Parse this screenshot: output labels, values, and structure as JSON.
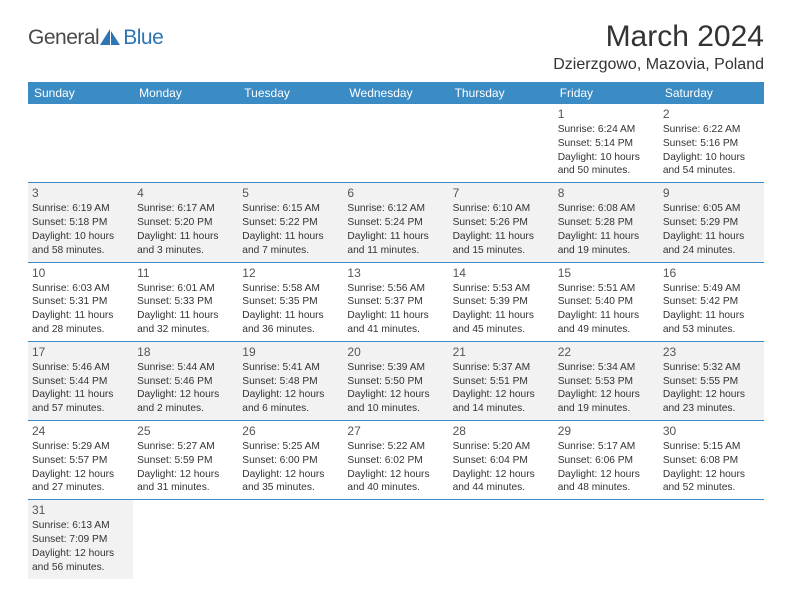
{
  "logo": {
    "text_general": "General",
    "text_blue": "Blue",
    "shape_color": "#2e75b6"
  },
  "title": "March 2024",
  "location": "Dzierzgowo, Mazovia, Poland",
  "colors": {
    "header_bg": "#3b8bc4",
    "header_text": "#ffffff",
    "shaded_bg": "#f2f2f2",
    "border": "#3b8bc4",
    "text": "#333333"
  },
  "day_names": [
    "Sunday",
    "Monday",
    "Tuesday",
    "Wednesday",
    "Thursday",
    "Friday",
    "Saturday"
  ],
  "weeks": [
    [
      null,
      null,
      null,
      null,
      null,
      {
        "n": "1",
        "sr": "Sunrise: 6:24 AM",
        "ss": "Sunset: 5:14 PM",
        "dl1": "Daylight: 10 hours",
        "dl2": "and 50 minutes."
      },
      {
        "n": "2",
        "sr": "Sunrise: 6:22 AM",
        "ss": "Sunset: 5:16 PM",
        "dl1": "Daylight: 10 hours",
        "dl2": "and 54 minutes."
      }
    ],
    [
      {
        "n": "3",
        "sr": "Sunrise: 6:19 AM",
        "ss": "Sunset: 5:18 PM",
        "dl1": "Daylight: 10 hours",
        "dl2": "and 58 minutes."
      },
      {
        "n": "4",
        "sr": "Sunrise: 6:17 AM",
        "ss": "Sunset: 5:20 PM",
        "dl1": "Daylight: 11 hours",
        "dl2": "and 3 minutes."
      },
      {
        "n": "5",
        "sr": "Sunrise: 6:15 AM",
        "ss": "Sunset: 5:22 PM",
        "dl1": "Daylight: 11 hours",
        "dl2": "and 7 minutes."
      },
      {
        "n": "6",
        "sr": "Sunrise: 6:12 AM",
        "ss": "Sunset: 5:24 PM",
        "dl1": "Daylight: 11 hours",
        "dl2": "and 11 minutes."
      },
      {
        "n": "7",
        "sr": "Sunrise: 6:10 AM",
        "ss": "Sunset: 5:26 PM",
        "dl1": "Daylight: 11 hours",
        "dl2": "and 15 minutes."
      },
      {
        "n": "8",
        "sr": "Sunrise: 6:08 AM",
        "ss": "Sunset: 5:28 PM",
        "dl1": "Daylight: 11 hours",
        "dl2": "and 19 minutes."
      },
      {
        "n": "9",
        "sr": "Sunrise: 6:05 AM",
        "ss": "Sunset: 5:29 PM",
        "dl1": "Daylight: 11 hours",
        "dl2": "and 24 minutes."
      }
    ],
    [
      {
        "n": "10",
        "sr": "Sunrise: 6:03 AM",
        "ss": "Sunset: 5:31 PM",
        "dl1": "Daylight: 11 hours",
        "dl2": "and 28 minutes."
      },
      {
        "n": "11",
        "sr": "Sunrise: 6:01 AM",
        "ss": "Sunset: 5:33 PM",
        "dl1": "Daylight: 11 hours",
        "dl2": "and 32 minutes."
      },
      {
        "n": "12",
        "sr": "Sunrise: 5:58 AM",
        "ss": "Sunset: 5:35 PM",
        "dl1": "Daylight: 11 hours",
        "dl2": "and 36 minutes."
      },
      {
        "n": "13",
        "sr": "Sunrise: 5:56 AM",
        "ss": "Sunset: 5:37 PM",
        "dl1": "Daylight: 11 hours",
        "dl2": "and 41 minutes."
      },
      {
        "n": "14",
        "sr": "Sunrise: 5:53 AM",
        "ss": "Sunset: 5:39 PM",
        "dl1": "Daylight: 11 hours",
        "dl2": "and 45 minutes."
      },
      {
        "n": "15",
        "sr": "Sunrise: 5:51 AM",
        "ss": "Sunset: 5:40 PM",
        "dl1": "Daylight: 11 hours",
        "dl2": "and 49 minutes."
      },
      {
        "n": "16",
        "sr": "Sunrise: 5:49 AM",
        "ss": "Sunset: 5:42 PM",
        "dl1": "Daylight: 11 hours",
        "dl2": "and 53 minutes."
      }
    ],
    [
      {
        "n": "17",
        "sr": "Sunrise: 5:46 AM",
        "ss": "Sunset: 5:44 PM",
        "dl1": "Daylight: 11 hours",
        "dl2": "and 57 minutes."
      },
      {
        "n": "18",
        "sr": "Sunrise: 5:44 AM",
        "ss": "Sunset: 5:46 PM",
        "dl1": "Daylight: 12 hours",
        "dl2": "and 2 minutes."
      },
      {
        "n": "19",
        "sr": "Sunrise: 5:41 AM",
        "ss": "Sunset: 5:48 PM",
        "dl1": "Daylight: 12 hours",
        "dl2": "and 6 minutes."
      },
      {
        "n": "20",
        "sr": "Sunrise: 5:39 AM",
        "ss": "Sunset: 5:50 PM",
        "dl1": "Daylight: 12 hours",
        "dl2": "and 10 minutes."
      },
      {
        "n": "21",
        "sr": "Sunrise: 5:37 AM",
        "ss": "Sunset: 5:51 PM",
        "dl1": "Daylight: 12 hours",
        "dl2": "and 14 minutes."
      },
      {
        "n": "22",
        "sr": "Sunrise: 5:34 AM",
        "ss": "Sunset: 5:53 PM",
        "dl1": "Daylight: 12 hours",
        "dl2": "and 19 minutes."
      },
      {
        "n": "23",
        "sr": "Sunrise: 5:32 AM",
        "ss": "Sunset: 5:55 PM",
        "dl1": "Daylight: 12 hours",
        "dl2": "and 23 minutes."
      }
    ],
    [
      {
        "n": "24",
        "sr": "Sunrise: 5:29 AM",
        "ss": "Sunset: 5:57 PM",
        "dl1": "Daylight: 12 hours",
        "dl2": "and 27 minutes."
      },
      {
        "n": "25",
        "sr": "Sunrise: 5:27 AM",
        "ss": "Sunset: 5:59 PM",
        "dl1": "Daylight: 12 hours",
        "dl2": "and 31 minutes."
      },
      {
        "n": "26",
        "sr": "Sunrise: 5:25 AM",
        "ss": "Sunset: 6:00 PM",
        "dl1": "Daylight: 12 hours",
        "dl2": "and 35 minutes."
      },
      {
        "n": "27",
        "sr": "Sunrise: 5:22 AM",
        "ss": "Sunset: 6:02 PM",
        "dl1": "Daylight: 12 hours",
        "dl2": "and 40 minutes."
      },
      {
        "n": "28",
        "sr": "Sunrise: 5:20 AM",
        "ss": "Sunset: 6:04 PM",
        "dl1": "Daylight: 12 hours",
        "dl2": "and 44 minutes."
      },
      {
        "n": "29",
        "sr": "Sunrise: 5:17 AM",
        "ss": "Sunset: 6:06 PM",
        "dl1": "Daylight: 12 hours",
        "dl2": "and 48 minutes."
      },
      {
        "n": "30",
        "sr": "Sunrise: 5:15 AM",
        "ss": "Sunset: 6:08 PM",
        "dl1": "Daylight: 12 hours",
        "dl2": "and 52 minutes."
      }
    ],
    [
      {
        "n": "31",
        "sr": "Sunrise: 6:13 AM",
        "ss": "Sunset: 7:09 PM",
        "dl1": "Daylight: 12 hours",
        "dl2": "and 56 minutes."
      },
      null,
      null,
      null,
      null,
      null,
      null
    ]
  ]
}
